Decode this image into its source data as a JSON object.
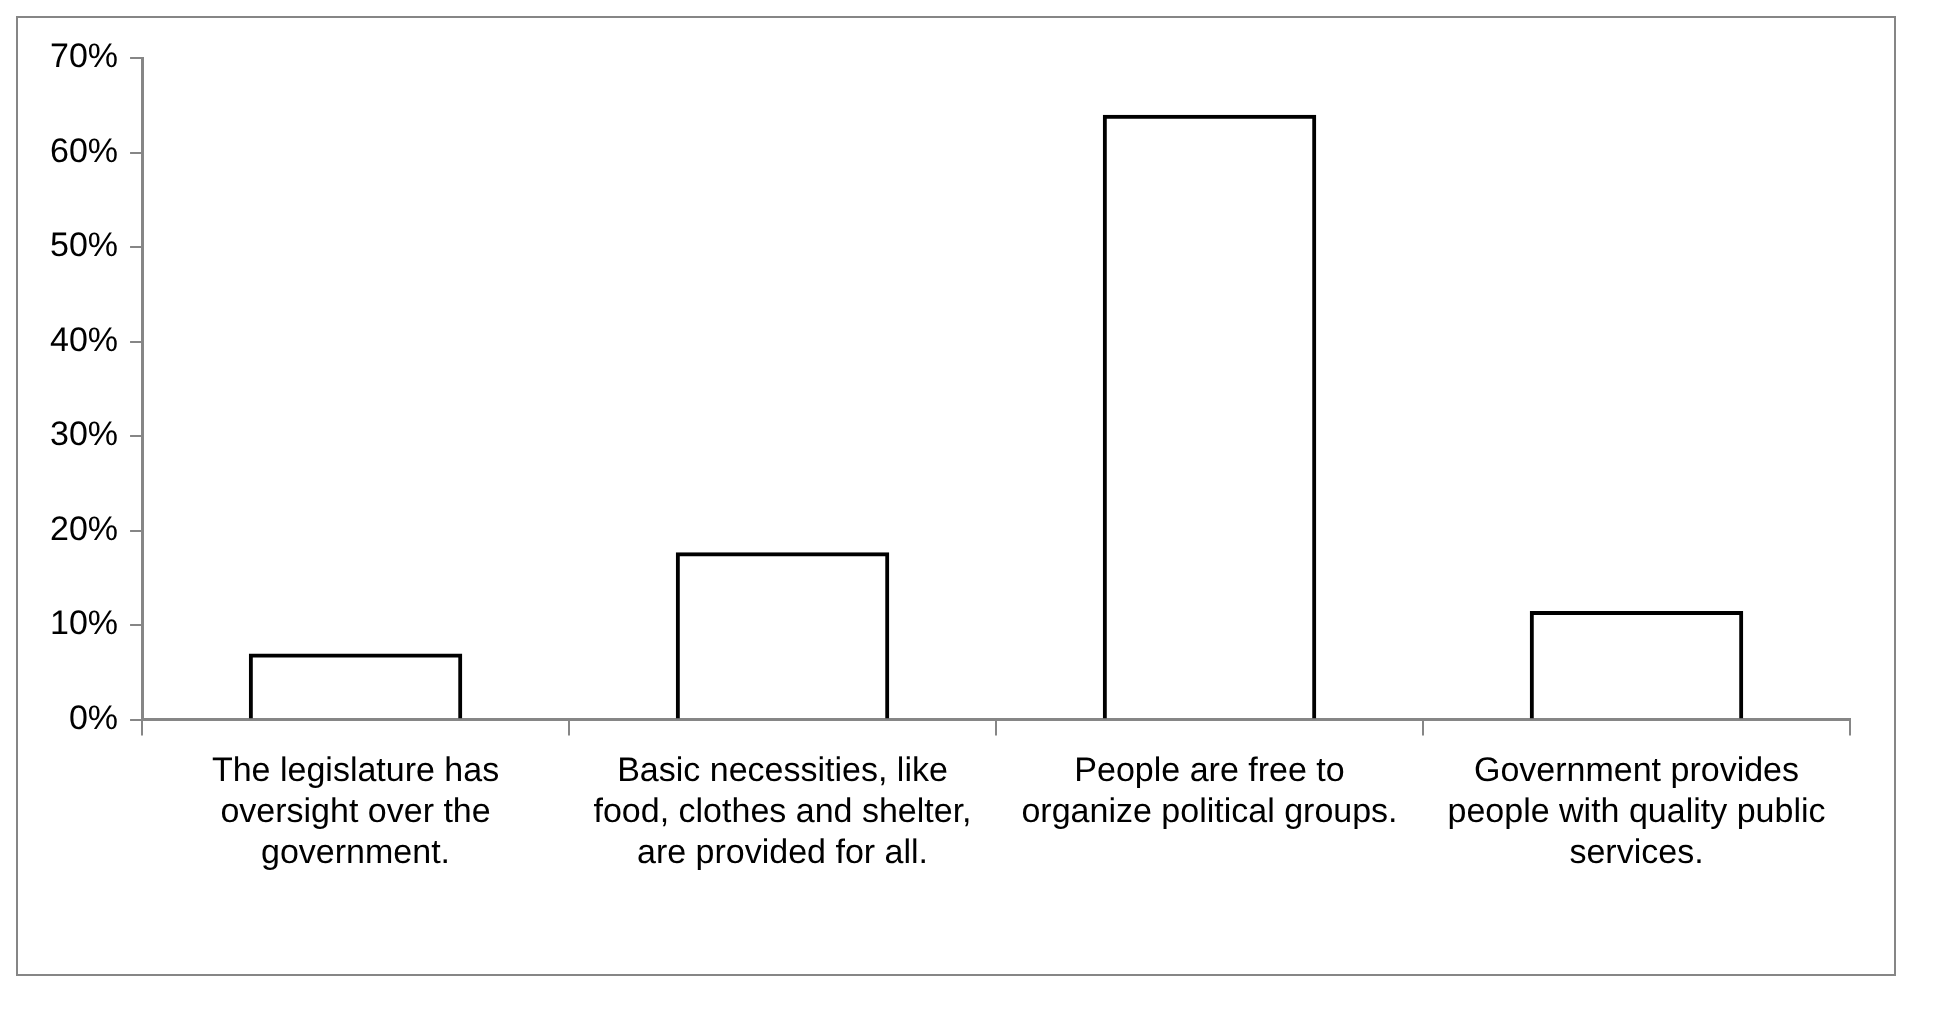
{
  "chart_data": {
    "type": "bar",
    "categories": [
      "The legislature has oversight over the government.",
      "Basic necessities, like food, clothes and shelter, are provided for all.",
      "People are free to organize political groups.",
      "Government provides people with quality public services."
    ],
    "values": [
      7,
      17.7,
      64,
      11.5
    ],
    "color": "#000000",
    "ylim": [
      0,
      70
    ],
    "yticks": [
      {
        "value": 0,
        "label": "0%"
      },
      {
        "value": 10,
        "label": "10%"
      },
      {
        "value": 20,
        "label": "20%"
      },
      {
        "value": 30,
        "label": "30%"
      },
      {
        "value": 40,
        "label": "40%"
      },
      {
        "value": 50,
        "label": "50%"
      },
      {
        "value": 60,
        "label": "60%"
      },
      {
        "value": 70,
        "label": "70%"
      }
    ],
    "grid": false,
    "legend": false
  }
}
